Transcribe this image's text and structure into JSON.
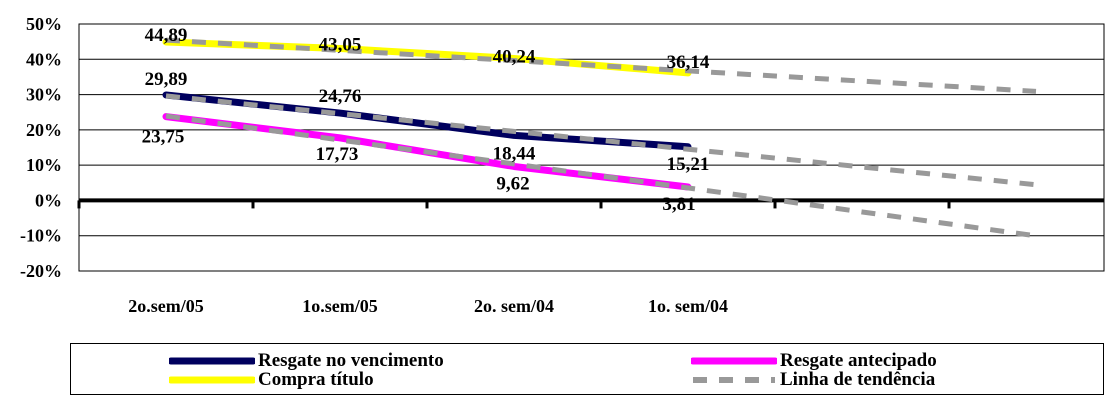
{
  "chart_data": {
    "type": "line",
    "categories": [
      "2o.sem/05",
      "1o.sem/05",
      "2o. sem/04",
      "1o. sem/04"
    ],
    "ylim": [
      -20,
      50
    ],
    "y_ticks": [
      "50%",
      "40%",
      "30%",
      "20%",
      "10%",
      "0%",
      "-10%",
      "-20%"
    ],
    "grid": true,
    "legend_position": "bottom",
    "series": [
      {
        "name": "Resgate no vencimento",
        "color": "#00005e",
        "values": [
          29.89,
          24.76,
          18.44,
          15.21
        ],
        "labels": [
          "29,89",
          "24,76",
          "18,44",
          "15,21"
        ]
      },
      {
        "name": "Resgate antecipado",
        "color": "#ff00ff",
        "values": [
          23.75,
          17.73,
          9.62,
          3.81
        ],
        "labels": [
          "23,75",
          "17,73",
          "9,62",
          "3,81"
        ]
      },
      {
        "name": "Compra título",
        "color": "#ffff00",
        "values": [
          44.89,
          43.05,
          40.24,
          36.14
        ],
        "labels": [
          "44,89",
          "43,05",
          "40,24",
          "36,14"
        ]
      }
    ],
    "trendline": {
      "name": "Linha de tendência",
      "color": "#999999"
    }
  },
  "legend": {
    "items": [
      {
        "label": "Resgate no vencimento",
        "color": "#00005e",
        "style": "solid"
      },
      {
        "label": "Resgate antecipado",
        "color": "#ff00ff",
        "style": "solid"
      },
      {
        "label": "Compra título",
        "color": "#ffff00",
        "style": "solid"
      },
      {
        "label": "Linha de tendência",
        "color": "#999999",
        "style": "dashed"
      }
    ]
  }
}
